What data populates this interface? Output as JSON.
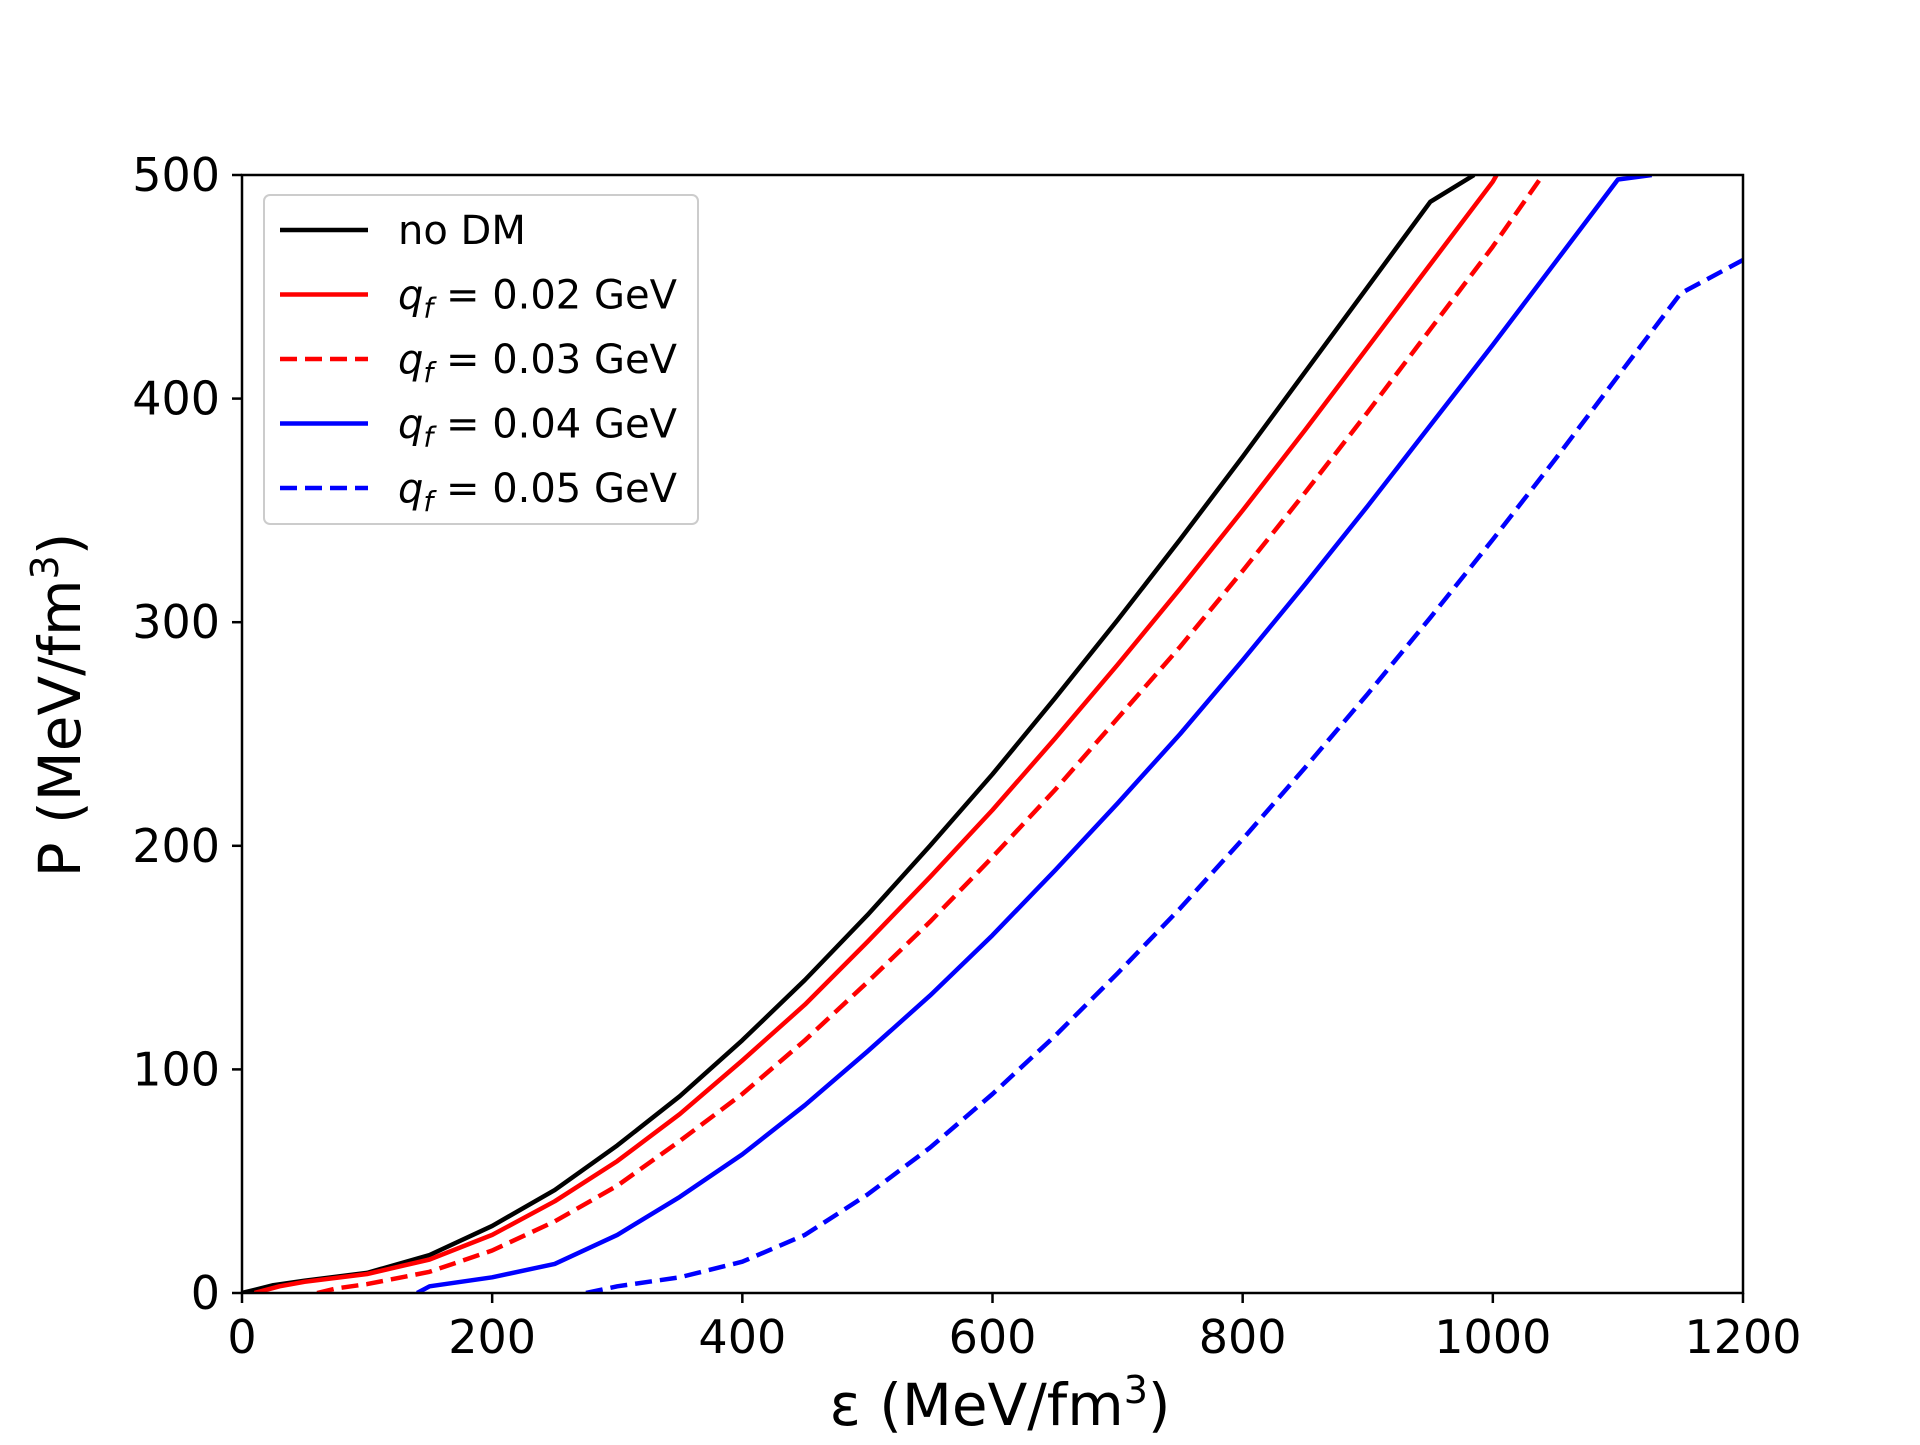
{
  "chart_data": {
    "type": "line",
    "title": "",
    "xlabel": "ε (MeV/fm",
    "xlabel_sup": "3",
    "xlabel_end": ")",
    "ylabel": "P (MeV/fm",
    "ylabel_sup": "3",
    "ylabel_end": ")",
    "xlim": [
      0,
      1200
    ],
    "ylim": [
      0,
      500
    ],
    "xticks": [
      0,
      200,
      400,
      600,
      800,
      1000,
      1200
    ],
    "yticks": [
      0,
      100,
      200,
      300,
      400,
      500
    ],
    "xtick_labels": [
      "0",
      "200",
      "400",
      "600",
      "800",
      "1000",
      "1200"
    ],
    "ytick_labels": [
      "0",
      "100",
      "200",
      "300",
      "400",
      "500"
    ],
    "grid": false,
    "legend_position": "top-left",
    "series": [
      {
        "name": "no DM",
        "legend_var": "",
        "legend_sub": "",
        "legend_rest": "no DM",
        "color": "#000000",
        "dash": "solid",
        "x": [
          0,
          25,
          50,
          100,
          150,
          200,
          250,
          300,
          350,
          400,
          450,
          500,
          550,
          600,
          650,
          700,
          750,
          800,
          850,
          900,
          950,
          985
        ],
        "y": [
          0,
          3.5,
          5.5,
          9,
          17,
          30,
          46,
          66,
          88,
          113,
          140,
          169,
          200,
          232,
          266,
          301,
          337,
          374,
          412,
          450,
          488,
          500
        ]
      },
      {
        "name": "q_f = 0.02 GeV",
        "legend_var": "q",
        "legend_sub": "f",
        "legend_rest": " = 0.02 GeV",
        "color": "#ff0000",
        "dash": "solid",
        "x": [
          10,
          30,
          50,
          100,
          150,
          200,
          250,
          300,
          350,
          400,
          450,
          500,
          550,
          600,
          650,
          700,
          750,
          800,
          850,
          900,
          950,
          1000,
          1003
        ],
        "y": [
          0,
          3,
          5,
          8.5,
          15,
          26,
          41,
          59,
          80,
          104,
          129,
          157,
          186,
          216,
          248,
          281,
          315,
          350,
          386,
          423,
          460,
          497,
          500
        ]
      },
      {
        "name": "q_f = 0.03 GeV",
        "legend_var": "q",
        "legend_sub": "f",
        "legend_rest": " = 0.03 GeV",
        "color": "#ff0000",
        "dash": "dashed",
        "x": [
          60,
          75,
          100,
          150,
          200,
          250,
          300,
          350,
          400,
          450,
          500,
          550,
          600,
          650,
          700,
          750,
          800,
          850,
          900,
          950,
          1000,
          1040
        ],
        "y": [
          0,
          2,
          4,
          9.5,
          19,
          32,
          48,
          68,
          89,
          113,
          139,
          166,
          195,
          225,
          257,
          289,
          323,
          358,
          394,
          431,
          468,
          500
        ]
      },
      {
        "name": "q_f = 0.04 GeV",
        "legend_var": "q",
        "legend_sub": "f",
        "legend_rest": " = 0.04 GeV",
        "color": "#0000ff",
        "dash": "solid",
        "x": [
          140,
          150,
          200,
          250,
          300,
          350,
          400,
          450,
          500,
          550,
          600,
          650,
          700,
          750,
          800,
          850,
          900,
          950,
          1000,
          1050,
          1100,
          1127
        ],
        "y": [
          0,
          3,
          7,
          13,
          26,
          43,
          62,
          84,
          108,
          133,
          160,
          189,
          219,
          250,
          283,
          317,
          352,
          388,
          424,
          461,
          498,
          500
        ]
      },
      {
        "name": "q_f = 0.05 GeV",
        "legend_var": "q",
        "legend_sub": "f",
        "legend_rest": " = 0.05 GeV",
        "color": "#0000ff",
        "dash": "dashed",
        "x": [
          275,
          300,
          350,
          400,
          450,
          500,
          550,
          600,
          650,
          700,
          750,
          800,
          850,
          900,
          950,
          1000,
          1050,
          1100,
          1150,
          1200
        ],
        "y": [
          0,
          3,
          7,
          14,
          26,
          44,
          65,
          89,
          115,
          143,
          172,
          203,
          235,
          268,
          302,
          337,
          373,
          410,
          447,
          462
        ]
      }
    ]
  }
}
